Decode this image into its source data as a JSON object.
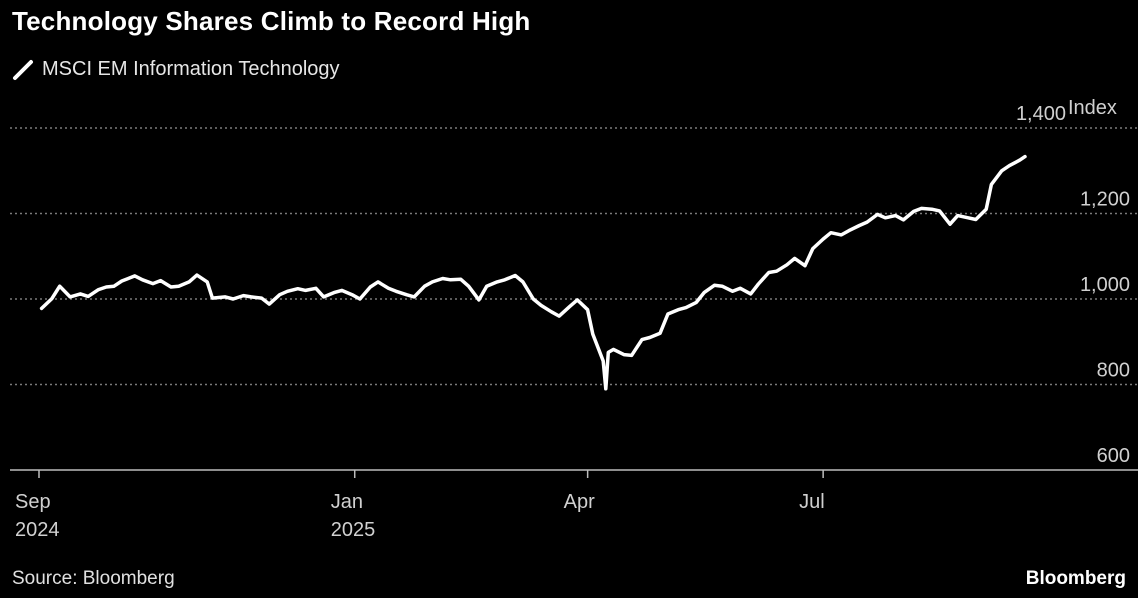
{
  "chart_data": {
    "type": "line",
    "title": "Technology Shares Climb to Record High",
    "series": [
      {
        "name": "MSCI EM Information Technology",
        "color": "#ffffff",
        "points": [
          [
            "2024-09-02",
            978
          ],
          [
            "2024-09-06",
            1001
          ],
          [
            "2024-09-09",
            1030
          ],
          [
            "2024-09-13",
            1005
          ],
          [
            "2024-09-17",
            1012
          ],
          [
            "2024-09-20",
            1006
          ],
          [
            "2024-09-24",
            1022
          ],
          [
            "2024-09-27",
            1028
          ],
          [
            "2024-09-30",
            1030
          ],
          [
            "2024-10-03",
            1042
          ],
          [
            "2024-10-08",
            1054
          ],
          [
            "2024-10-11",
            1045
          ],
          [
            "2024-10-15",
            1036
          ],
          [
            "2024-10-18",
            1043
          ],
          [
            "2024-10-22",
            1028
          ],
          [
            "2024-10-25",
            1030
          ],
          [
            "2024-10-29",
            1040
          ],
          [
            "2024-11-01",
            1056
          ],
          [
            "2024-11-05",
            1040
          ],
          [
            "2024-11-07",
            1002
          ],
          [
            "2024-11-12",
            1005
          ],
          [
            "2024-11-15",
            1000
          ],
          [
            "2024-11-19",
            1008
          ],
          [
            "2024-11-22",
            1005
          ],
          [
            "2024-11-26",
            1002
          ],
          [
            "2024-11-29",
            988
          ],
          [
            "2024-12-03",
            1010
          ],
          [
            "2024-12-06",
            1018
          ],
          [
            "2024-12-10",
            1024
          ],
          [
            "2024-12-13",
            1020
          ],
          [
            "2024-12-17",
            1025
          ],
          [
            "2024-12-20",
            1005
          ],
          [
            "2024-12-24",
            1015
          ],
          [
            "2024-12-27",
            1020
          ],
          [
            "2024-12-31",
            1010
          ],
          [
            "2025-01-03",
            1000
          ],
          [
            "2025-01-07",
            1028
          ],
          [
            "2025-01-10",
            1040
          ],
          [
            "2025-01-14",
            1025
          ],
          [
            "2025-01-17",
            1018
          ],
          [
            "2025-01-21",
            1010
          ],
          [
            "2025-01-24",
            1005
          ],
          [
            "2025-01-28",
            1030
          ],
          [
            "2025-01-31",
            1040
          ],
          [
            "2025-02-04",
            1048
          ],
          [
            "2025-02-07",
            1045
          ],
          [
            "2025-02-11",
            1046
          ],
          [
            "2025-02-14",
            1030
          ],
          [
            "2025-02-18",
            998
          ],
          [
            "2025-02-21",
            1030
          ],
          [
            "2025-02-25",
            1040
          ],
          [
            "2025-02-28",
            1045
          ],
          [
            "2025-03-04",
            1055
          ],
          [
            "2025-03-07",
            1040
          ],
          [
            "2025-03-11",
            1000
          ],
          [
            "2025-03-14",
            985
          ],
          [
            "2025-03-18",
            970
          ],
          [
            "2025-03-21",
            960
          ],
          [
            "2025-03-25",
            982
          ],
          [
            "2025-03-28",
            998
          ],
          [
            "2025-04-01",
            975
          ],
          [
            "2025-04-03",
            918
          ],
          [
            "2025-04-07",
            855
          ],
          [
            "2025-04-08",
            790
          ],
          [
            "2025-04-09",
            875
          ],
          [
            "2025-04-11",
            882
          ],
          [
            "2025-04-15",
            870
          ],
          [
            "2025-04-18",
            868
          ],
          [
            "2025-04-22",
            905
          ],
          [
            "2025-04-25",
            910
          ],
          [
            "2025-04-29",
            920
          ],
          [
            "2025-05-02",
            965
          ],
          [
            "2025-05-06",
            975
          ],
          [
            "2025-05-09",
            980
          ],
          [
            "2025-05-13",
            992
          ],
          [
            "2025-05-16",
            1015
          ],
          [
            "2025-05-20",
            1032
          ],
          [
            "2025-05-23",
            1030
          ],
          [
            "2025-05-27",
            1018
          ],
          [
            "2025-05-30",
            1025
          ],
          [
            "2025-06-03",
            1012
          ],
          [
            "2025-06-06",
            1035
          ],
          [
            "2025-06-10",
            1062
          ],
          [
            "2025-06-13",
            1065
          ],
          [
            "2025-06-17",
            1080
          ],
          [
            "2025-06-20",
            1095
          ],
          [
            "2025-06-24",
            1078
          ],
          [
            "2025-06-27",
            1118
          ],
          [
            "2025-07-01",
            1140
          ],
          [
            "2025-07-04",
            1155
          ],
          [
            "2025-07-08",
            1150
          ],
          [
            "2025-07-11",
            1160
          ],
          [
            "2025-07-15",
            1172
          ],
          [
            "2025-07-18",
            1180
          ],
          [
            "2025-07-22",
            1198
          ],
          [
            "2025-07-25",
            1190
          ],
          [
            "2025-07-29",
            1195
          ],
          [
            "2025-08-01",
            1185
          ],
          [
            "2025-08-05",
            1205
          ],
          [
            "2025-08-08",
            1212
          ],
          [
            "2025-08-12",
            1210
          ],
          [
            "2025-08-15",
            1206
          ],
          [
            "2025-08-19",
            1175
          ],
          [
            "2025-08-22",
            1195
          ],
          [
            "2025-08-26",
            1190
          ],
          [
            "2025-08-29",
            1186
          ],
          [
            "2025-09-02",
            1210
          ],
          [
            "2025-09-04",
            1268
          ],
          [
            "2025-09-08",
            1300
          ],
          [
            "2025-09-11",
            1312
          ],
          [
            "2025-09-15",
            1325
          ],
          [
            "2025-09-17",
            1333
          ]
        ]
      }
    ],
    "yaxis": {
      "unit": "Index",
      "ticks": [
        600,
        800,
        1000,
        1200,
        1400
      ],
      "tick_labels": [
        "600",
        "800",
        "1,000",
        "1,200",
        "1,400"
      ],
      "ylim": [
        600,
        1400
      ],
      "grid": true,
      "position": "right"
    },
    "xaxis": {
      "ticks": [
        {
          "date": "2024-09-01",
          "line1": "Sep",
          "line2": "2024"
        },
        {
          "date": "2025-01-01",
          "line1": "Jan",
          "line2": "2025"
        },
        {
          "date": "2025-04-01",
          "line1": "Apr",
          "line2": ""
        },
        {
          "date": "2025-07-01",
          "line1": "Jul",
          "line2": ""
        }
      ],
      "xlim": [
        "2024-09-01",
        "2025-10-01"
      ]
    },
    "legend": {
      "position": "top-left"
    }
  },
  "footer": {
    "source": "Source: Bloomberg",
    "brand": "Bloomberg"
  },
  "colors": {
    "background": "#000000",
    "line": "#ffffff",
    "grid": "#7a7a7a",
    "text": "#d0d0d0"
  }
}
